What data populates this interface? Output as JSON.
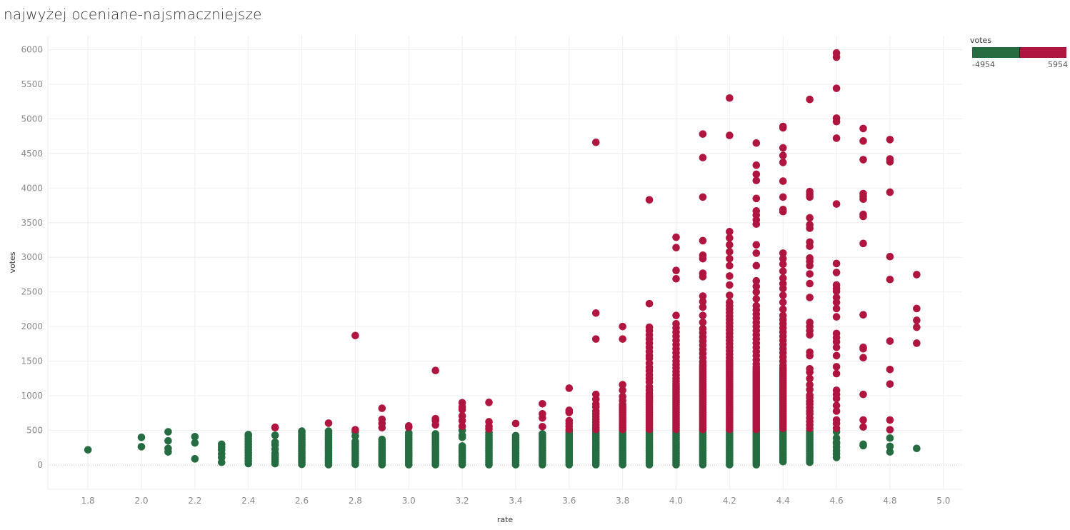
{
  "title": "najwyżej oceniane-najsmaczniejsze",
  "legend": {
    "title": "votes",
    "min_label": "-4954",
    "max_label": "5954",
    "low_color": "#256d41",
    "high_color": "#b0153f"
  },
  "chart_data": {
    "type": "scatter",
    "xlabel": "rate",
    "ylabel": "votes",
    "xlim": [
      1.65,
      5.07
    ],
    "ylim": [
      -350,
      6200
    ],
    "x_ticks": [
      "1.8",
      "2.0",
      "2.2",
      "2.4",
      "2.6",
      "2.8",
      "3.0",
      "3.2",
      "3.4",
      "3.6",
      "3.8",
      "4.0",
      "4.2",
      "4.4",
      "4.6",
      "4.8",
      "5.0"
    ],
    "y_ticks": [
      "0",
      "500",
      "1000",
      "1500",
      "2000",
      "2500",
      "3000",
      "3500",
      "4000",
      "4500",
      "5000",
      "5500",
      "6000"
    ],
    "color_threshold": 500,
    "low_color": "#256d41",
    "high_color": "#b0153f",
    "grid": true,
    "legend_position": "top-right",
    "series": [
      {
        "x": 1.8,
        "values": [
          220
        ]
      },
      {
        "x": 2.0,
        "values": [
          265,
          400
        ]
      },
      {
        "x": 2.1,
        "values": [
          190,
          240,
          350,
          480
        ]
      },
      {
        "x": 2.2,
        "values": [
          90,
          320,
          410
        ]
      },
      {
        "x": 2.3,
        "values": [
          40,
          110,
          160,
          220,
          260,
          300
        ]
      },
      {
        "x": 2.4,
        "values": [
          20,
          60,
          100,
          140,
          180,
          220,
          260,
          300,
          340,
          380,
          420,
          440
        ]
      },
      {
        "x": 2.5,
        "values": [
          20,
          50,
          80,
          110,
          140,
          170,
          230,
          290,
          330,
          430,
          540,
          545
        ]
      },
      {
        "x": 2.6,
        "values": [
          10,
          40,
          70,
          100,
          130,
          160,
          190,
          220,
          250,
          280,
          310,
          340,
          370,
          400,
          430,
          470,
          490
        ]
      },
      {
        "x": 2.7,
        "values": [
          5,
          35,
          65,
          95,
          125,
          155,
          185,
          215,
          245,
          275,
          305,
          335,
          365,
          395,
          425,
          460,
          490,
          605
        ]
      },
      {
        "x": 2.8,
        "values": [
          10,
          40,
          70,
          100,
          130,
          160,
          190,
          220,
          250,
          280,
          310,
          340,
          420,
          480,
          510,
          1870
        ]
      },
      {
        "x": 2.9,
        "values": [
          5,
          35,
          65,
          95,
          125,
          155,
          185,
          215,
          245,
          275,
          305,
          340,
          370,
          540,
          600,
          660,
          820
        ]
      },
      {
        "x": 3.0,
        "values": [
          5,
          35,
          65,
          95,
          125,
          155,
          185,
          215,
          245,
          275,
          305,
          335,
          365,
          395,
          430,
          465,
          545,
          565
        ]
      },
      {
        "x": 3.1,
        "values": [
          5,
          30,
          60,
          90,
          120,
          150,
          180,
          210,
          240,
          270,
          300,
          330,
          360,
          390,
          420,
          450,
          580,
          640,
          670,
          1365
        ]
      },
      {
        "x": 3.2,
        "values": [
          5,
          35,
          65,
          95,
          125,
          155,
          185,
          215,
          245,
          275,
          400,
          430,
          500,
          560,
          640,
          710,
          800,
          840,
          900
        ]
      },
      {
        "x": 3.3,
        "values": [
          5,
          35,
          65,
          95,
          125,
          155,
          185,
          215,
          245,
          275,
          305,
          335,
          365,
          395,
          430,
          470,
          520,
          560,
          625,
          905
        ]
      },
      {
        "x": 3.4,
        "values": [
          5,
          35,
          65,
          95,
          125,
          155,
          185,
          215,
          245,
          275,
          305,
          335,
          365,
          395,
          425,
          600
        ]
      },
      {
        "x": 3.5,
        "values": [
          5,
          35,
          65,
          95,
          125,
          155,
          185,
          215,
          245,
          275,
          305,
          335,
          365,
          395,
          425,
          450,
          555,
          680,
          740,
          885
        ]
      },
      {
        "x": 3.6,
        "values": [
          5,
          35,
          65,
          95,
          125,
          155,
          185,
          215,
          245,
          275,
          305,
          335,
          365,
          395,
          425,
          455,
          485,
          515,
          560,
          600,
          640,
          760,
          790,
          1110
        ]
      },
      {
        "x": 3.7,
        "values": [
          5,
          35,
          65,
          95,
          125,
          155,
          185,
          215,
          245,
          275,
          305,
          335,
          365,
          395,
          425,
          455,
          485,
          515,
          545,
          580,
          620,
          660,
          700,
          740,
          780,
          840,
          880,
          950,
          1020,
          1820,
          2195,
          4660
        ]
      },
      {
        "x": 3.8,
        "values": [
          5,
          35,
          65,
          95,
          125,
          155,
          185,
          215,
          245,
          275,
          305,
          335,
          365,
          395,
          425,
          455,
          485,
          515,
          545,
          575,
          605,
          635,
          665,
          695,
          725,
          755,
          785,
          815,
          845,
          875,
          930,
          990,
          1080,
          1160,
          1820,
          2000
        ]
      },
      {
        "x": 3.9,
        "values": [
          5,
          35,
          65,
          95,
          125,
          155,
          185,
          215,
          245,
          275,
          305,
          335,
          365,
          395,
          425,
          455,
          485,
          515,
          545,
          575,
          605,
          635,
          665,
          695,
          725,
          755,
          785,
          815,
          845,
          875,
          905,
          935,
          965,
          995,
          1030,
          1080,
          1130,
          1200,
          1250,
          1300,
          1360,
          1410,
          1470,
          1540,
          1580,
          1640,
          1700,
          1760,
          1820,
          1880,
          1940,
          1990,
          2330,
          3830
        ]
      },
      {
        "x": 4.0,
        "values": [
          5,
          35,
          65,
          95,
          125,
          155,
          185,
          215,
          245,
          275,
          305,
          335,
          365,
          395,
          425,
          455,
          485,
          515,
          545,
          575,
          605,
          635,
          665,
          695,
          725,
          755,
          785,
          815,
          845,
          875,
          905,
          935,
          965,
          995,
          1025,
          1055,
          1085,
          1115,
          1145,
          1175,
          1210,
          1250,
          1300,
          1350,
          1400,
          1450,
          1500,
          1560,
          1620,
          1680,
          1740,
          1800,
          1860,
          1920,
          1980,
          2040,
          2160,
          2690,
          2810,
          3140,
          3290
        ]
      },
      {
        "x": 4.1,
        "values": [
          5,
          35,
          65,
          95,
          125,
          155,
          185,
          215,
          245,
          275,
          305,
          335,
          365,
          395,
          425,
          455,
          485,
          515,
          545,
          575,
          605,
          635,
          665,
          695,
          725,
          755,
          785,
          815,
          845,
          875,
          905,
          935,
          965,
          995,
          1025,
          1055,
          1085,
          1115,
          1145,
          1175,
          1205,
          1235,
          1265,
          1295,
          1325,
          1355,
          1385,
          1415,
          1445,
          1490,
          1550,
          1610,
          1670,
          1730,
          1790,
          1850,
          1910,
          1970,
          2060,
          2160,
          2280,
          2360,
          2440,
          2720,
          2770,
          2980,
          3030,
          3240,
          3870,
          4440,
          4780
        ]
      },
      {
        "x": 4.2,
        "values": [
          5,
          35,
          65,
          95,
          125,
          155,
          185,
          215,
          245,
          275,
          305,
          335,
          365,
          395,
          425,
          455,
          485,
          515,
          545,
          575,
          605,
          635,
          665,
          695,
          725,
          755,
          785,
          815,
          845,
          875,
          905,
          935,
          965,
          995,
          1025,
          1055,
          1085,
          1115,
          1145,
          1175,
          1205,
          1235,
          1265,
          1295,
          1325,
          1355,
          1385,
          1415,
          1445,
          1475,
          1505,
          1550,
          1600,
          1650,
          1700,
          1750,
          1800,
          1850,
          1900,
          1950,
          2000,
          2050,
          2100,
          2150,
          2200,
          2250,
          2300,
          2350,
          2450,
          2600,
          2730,
          2880,
          2980,
          3080,
          3180,
          3280,
          3370,
          4760,
          5300
        ]
      },
      {
        "x": 4.3,
        "values": [
          5,
          35,
          65,
          95,
          125,
          155,
          185,
          215,
          245,
          275,
          305,
          335,
          365,
          395,
          425,
          455,
          485,
          515,
          545,
          575,
          605,
          635,
          665,
          695,
          725,
          755,
          785,
          815,
          845,
          875,
          905,
          935,
          965,
          995,
          1025,
          1055,
          1085,
          1115,
          1145,
          1175,
          1205,
          1235,
          1265,
          1295,
          1325,
          1355,
          1385,
          1415,
          1460,
          1520,
          1580,
          1640,
          1700,
          1760,
          1820,
          1880,
          1940,
          2000,
          2060,
          2120,
          2180,
          2240,
          2300,
          2400,
          2500,
          2580,
          2660,
          2880,
          3060,
          3180,
          3480,
          3540,
          3610,
          3670,
          3850,
          4110,
          4200,
          4330,
          4650
        ]
      },
      {
        "x": 4.4,
        "values": [
          50,
          80,
          110,
          140,
          170,
          200,
          230,
          260,
          290,
          320,
          350,
          380,
          410,
          440,
          470,
          500,
          530,
          560,
          590,
          620,
          650,
          680,
          710,
          740,
          770,
          800,
          830,
          860,
          890,
          920,
          950,
          980,
          1010,
          1040,
          1070,
          1100,
          1130,
          1160,
          1190,
          1220,
          1250,
          1280,
          1310,
          1340,
          1370,
          1400,
          1440,
          1500,
          1560,
          1620,
          1680,
          1740,
          1800,
          1860,
          1920,
          1980,
          2040,
          2100,
          2160,
          2250,
          2350,
          2450,
          2550,
          2620,
          2700,
          2800,
          2900,
          2980,
          3060,
          3660,
          3690,
          3870,
          4100,
          4370,
          4470,
          4580,
          4870,
          4890
        ]
      },
      {
        "x": 4.5,
        "values": [
          40,
          70,
          100,
          130,
          160,
          190,
          220,
          250,
          280,
          310,
          340,
          370,
          400,
          430,
          460,
          490,
          530,
          580,
          630,
          680,
          740,
          780,
          830,
          880,
          920,
          970,
          1010,
          1090,
          1160,
          1250,
          1340,
          1390,
          1580,
          1630,
          1880,
          1940,
          2000,
          2060,
          2420,
          2620,
          2760,
          2880,
          2940,
          2990,
          3160,
          3220,
          3420,
          3470,
          3570,
          3870,
          3910,
          3950,
          5280
        ]
      },
      {
        "x": 4.6,
        "values": [
          110,
          160,
          210,
          260,
          310,
          330,
          390,
          480,
          530,
          600,
          650,
          780,
          860,
          960,
          1020,
          1080,
          1320,
          1420,
          1580,
          1700,
          1780,
          1840,
          1900,
          2140,
          2260,
          2350,
          2420,
          2510,
          2550,
          2600,
          2780,
          2910,
          3770,
          4720,
          4960,
          5010,
          5440,
          5890,
          5950
        ]
      },
      {
        "x": 4.7,
        "values": [
          280,
          300,
          550,
          650,
          1020,
          1550,
          1680,
          1700,
          2170,
          3200,
          3590,
          3620,
          3840,
          3880,
          3920,
          4410,
          4680,
          4860
        ]
      },
      {
        "x": 4.8,
        "values": [
          190,
          270,
          390,
          510,
          650,
          1170,
          1380,
          1790,
          2680,
          3010,
          3940,
          4380,
          4420,
          4700
        ]
      },
      {
        "x": 4.9,
        "values": [
          240,
          1760,
          1990,
          2090,
          2260,
          2750
        ]
      }
    ]
  }
}
